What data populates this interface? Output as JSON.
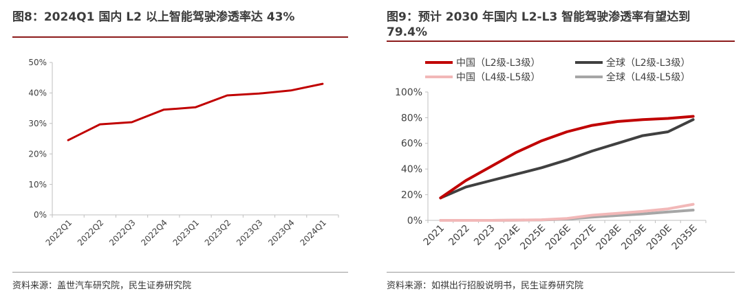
{
  "left": {
    "title": "图8：2024Q1 国内 L2 以上智能驾驶渗透率达 43%",
    "source": "资料来源：盖世汽车研究院，民生证券研究院",
    "chart_data": {
      "type": "line",
      "categories": [
        "2022Q1",
        "2022Q2",
        "2022Q3",
        "2022Q4",
        "2023Q1",
        "2023Q2",
        "2023Q3",
        "2023Q4",
        "2024Q1"
      ],
      "series": [
        {
          "values": [
            24.5,
            29.7,
            30.4,
            34.5,
            35.3,
            39.2,
            39.8,
            40.8,
            43.0
          ],
          "color": "#c00000"
        }
      ],
      "ylim": [
        0,
        50
      ],
      "yticks": [
        "0%",
        "10%",
        "20%",
        "30%",
        "40%",
        "50%"
      ],
      "xlabel": "",
      "ylabel": "",
      "grid": false
    }
  },
  "right": {
    "title": "图9：预计 2030 年国内 L2-L3 智能驾驶渗透率有望达到 79.4%",
    "source": "资料来源：如祺出行招股说明书，民生证券研究院",
    "chart_data": {
      "type": "line",
      "categories": [
        "2021",
        "2022",
        "2023",
        "2024E",
        "2025E",
        "2026E",
        "2027E",
        "2028E",
        "2029E",
        "2030E",
        "2035E"
      ],
      "series": [
        {
          "name": "中国（L2级-L3级）",
          "color": "#c00000",
          "values": [
            17.5,
            31,
            42,
            53,
            62,
            69,
            74,
            77,
            78.5,
            79.4,
            81
          ]
        },
        {
          "name": "全球（L2级-L3级）",
          "color": "#404040",
          "values": [
            17.5,
            26,
            31,
            36,
            41,
            47,
            54,
            60,
            66,
            69,
            78.5
          ]
        },
        {
          "name": "中国（L4级-L5级）",
          "color": "#f2b8b8",
          "values": [
            0,
            0,
            0,
            0.2,
            0.5,
            1.5,
            4,
            5.5,
            7,
            9,
            12.5
          ]
        },
        {
          "name": "全球（L4级-L5级）",
          "color": "#a6a6a6",
          "values": [
            0,
            0,
            0,
            0.1,
            0.3,
            1,
            2.5,
            3.8,
            5,
            6.5,
            8
          ]
        }
      ],
      "ylim": [
        0,
        100
      ],
      "yticks": [
        "0%",
        "20%",
        "40%",
        "60%",
        "80%",
        "100%"
      ],
      "legend": "top",
      "xlabel": "",
      "ylabel": "",
      "grid": false
    }
  }
}
